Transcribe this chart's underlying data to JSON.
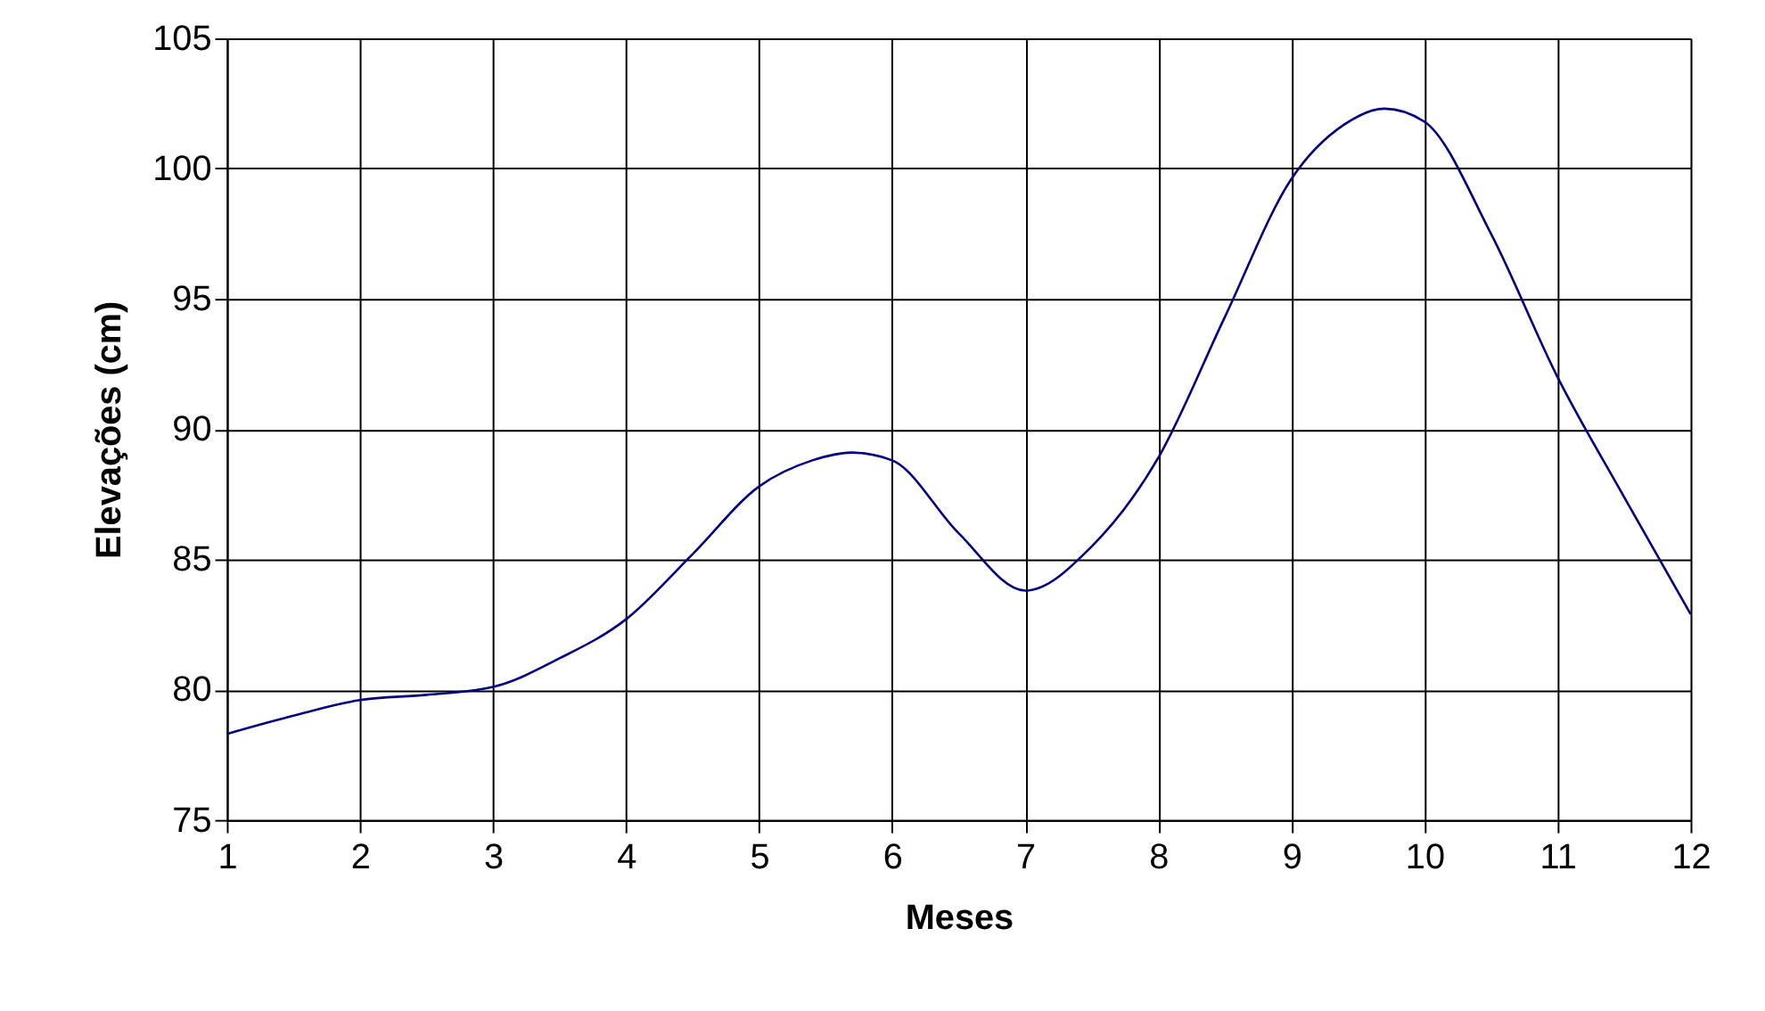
{
  "chart_data": {
    "type": "line",
    "xlabel": "Meses",
    "ylabel": "Elevações (cm)",
    "x": [
      1,
      1.5,
      2,
      2.5,
      3,
      3.5,
      4,
      4.5,
      5,
      5.4,
      5.7,
      6,
      6.5,
      7,
      7.5,
      8,
      8.5,
      9,
      9.4,
      9.7,
      10,
      10.5,
      11,
      11.5,
      12
    ],
    "series": [
      {
        "color": "#000080",
        "values": [
          78.3,
          79.0,
          79.6,
          79.8,
          80.1,
          81.2,
          82.7,
          85.2,
          87.8,
          88.8,
          89.1,
          88.8,
          86.0,
          83.8,
          85.5,
          88.9,
          94.3,
          99.6,
          101.7,
          102.3,
          101.8,
          97.5,
          92.0,
          87.4,
          82.9
        ]
      }
    ],
    "xlim": [
      1,
      12
    ],
    "xticks": [
      1,
      2,
      3,
      4,
      5,
      6,
      7,
      8,
      9,
      10,
      11,
      12
    ],
    "ylim": [
      75,
      105
    ],
    "yticks": [
      75,
      80,
      85,
      90,
      95,
      100,
      105
    ],
    "grid": true,
    "marker": "none",
    "line_style": "solid"
  }
}
